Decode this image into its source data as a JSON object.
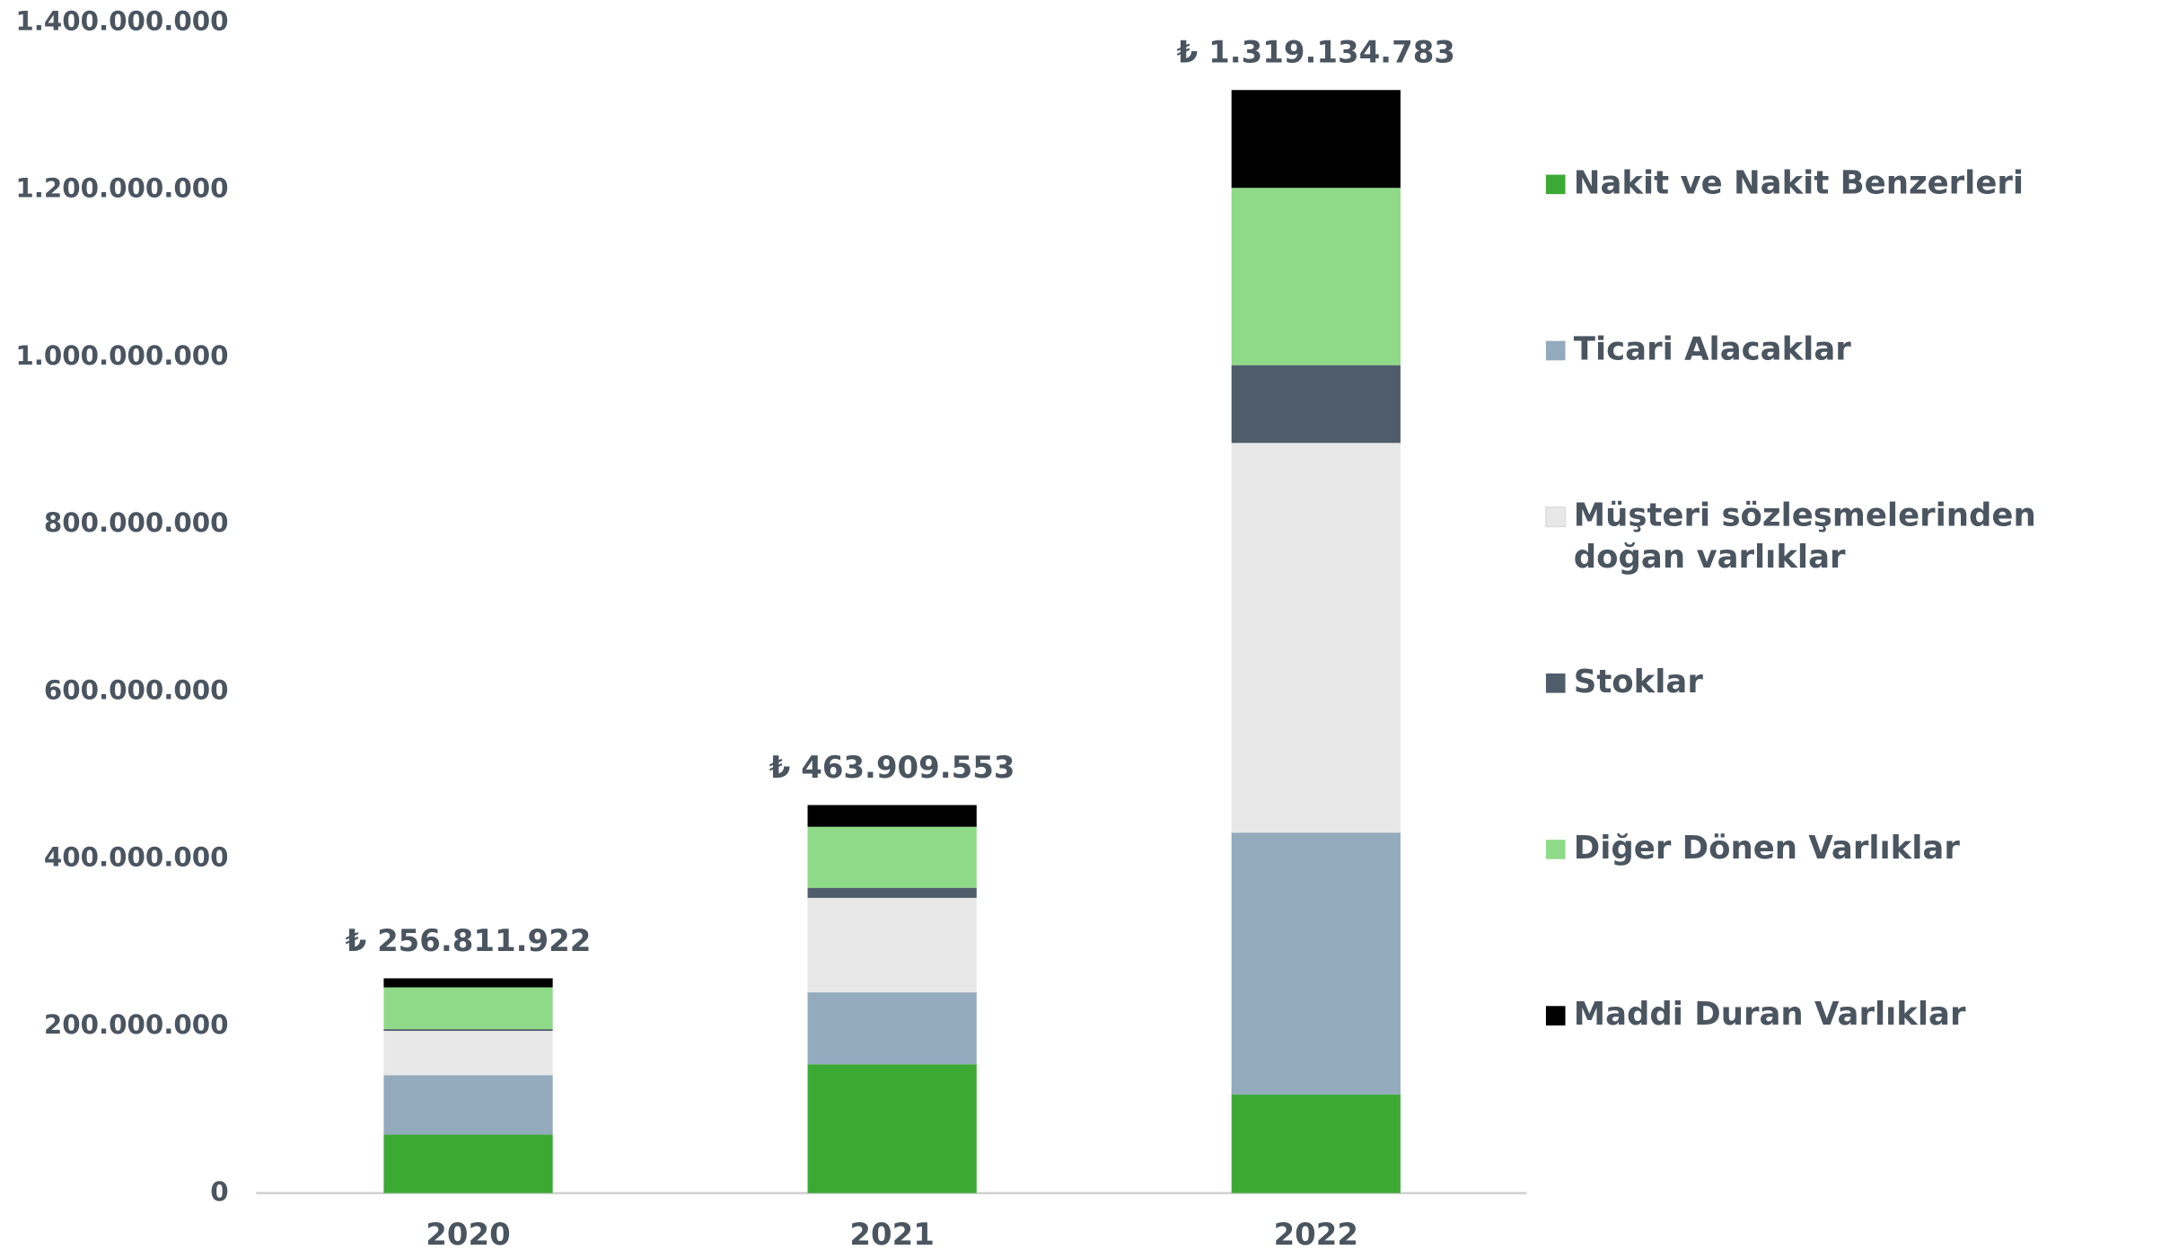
{
  "chart_data": {
    "type": "stacked_bar",
    "categories": [
      "2020",
      "2021",
      "2022"
    ],
    "series": [
      {
        "name": "Nakit ve Nakit Benzerleri",
        "color": "#3da935",
        "values": [
          70000000,
          154000000,
          118000000
        ]
      },
      {
        "name": "Ticari Alacaklar",
        "color": "#94aabd",
        "values": [
          71000000,
          86000000,
          313000000
        ]
      },
      {
        "name": "Müşteri sözleşmelerinden doğan varlıklar",
        "color": "#e8e8e8",
        "values": [
          53000000,
          113000000,
          466000000
        ]
      },
      {
        "name": "Stoklar",
        "color": "#4f5d6a",
        "values": [
          2000000,
          12000000,
          93000000
        ]
      },
      {
        "name": "Diğer Dönen Varlıklar",
        "color": "#8fda88",
        "values": [
          50000000,
          73000000,
          212000000
        ]
      },
      {
        "name": "Maddi Duran Varlıklar",
        "color": "#000000",
        "values": [
          10800000,
          26000000,
          117000000
        ]
      }
    ],
    "totals": [
      256811922,
      463909553,
      1319134783
    ],
    "value_labels": [
      "₺ 256.811.922",
      "₺ 463.909.553",
      "₺ 1.319.134.783"
    ],
    "ylim": [
      0,
      1400000000
    ],
    "yticks": [
      0,
      {
        "value": 200000000,
        "label": "200.000.000"
      },
      {
        "value": 400000000,
        "label": "400.000.000"
      },
      {
        "value": 600000000,
        "label": "600.000.000"
      },
      {
        "value": 800000000,
        "label": "800.000.000"
      },
      {
        "value": 1000000000,
        "label": "1.000.000.000"
      },
      {
        "value": 1200000000,
        "label": "1.200.000.000"
      },
      {
        "value": 1400000000,
        "label": "1.400.000.000"
      }
    ],
    "grid": false,
    "legend": "right"
  }
}
